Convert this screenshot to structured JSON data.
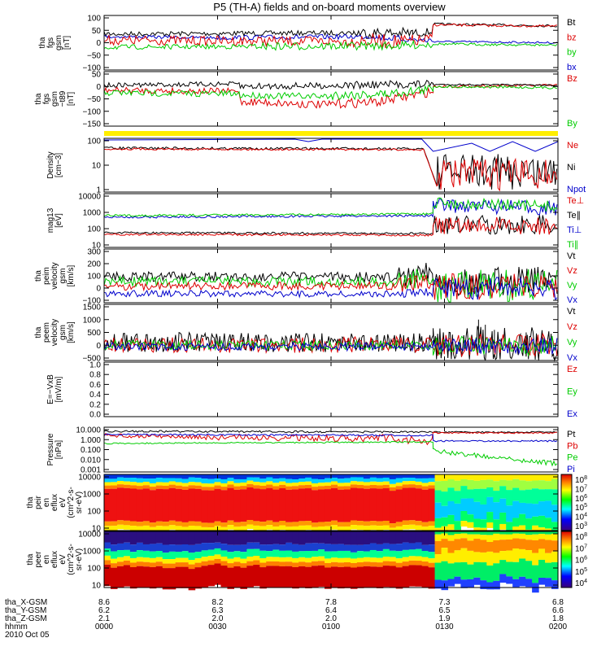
{
  "title": "P5 (TH-A) fields and on-board moments overview",
  "panels": [
    {
      "id": "fgs",
      "ylabel": [
        "tha",
        "fgs",
        "gsm",
        "[nT]"
      ],
      "ticks": [
        "100",
        "50",
        "0",
        "−50",
        "−100"
      ],
      "legend": [
        {
          "text": "Bt",
          "color": "#000000"
        },
        {
          "text": "bz",
          "color": "#dd0000"
        },
        {
          "text": "by",
          "color": "#00cc00"
        },
        {
          "text": "bx",
          "color": "#0000cc"
        }
      ]
    },
    {
      "id": "fgs_t89",
      "ylabel": [
        "tha",
        "fgs",
        "gsm",
        "−t89",
        "[nT]"
      ],
      "ticks": [
        "50",
        "0",
        "−50",
        "−100",
        "−150"
      ],
      "legend": [
        {
          "text": "Bz",
          "color": "#dd0000"
        },
        {
          "text": "By",
          "color": "#00cc00"
        }
      ]
    },
    {
      "id": "density",
      "ylabel": [
        "Density",
        "[cm−3]"
      ],
      "ticks": [
        "100",
        "10",
        "1"
      ],
      "legend": [
        {
          "text": "Ne",
          "color": "#dd0000"
        },
        {
          "text": "Ni",
          "color": "#000000"
        },
        {
          "text": "Npot",
          "color": "#0000cc"
        }
      ]
    },
    {
      "id": "temp",
      "ylabel": [
        "mag13",
        "[eV]"
      ],
      "ticks": [
        "10000",
        "1000",
        "100",
        "10"
      ],
      "legend": [
        {
          "text": "Te⊥",
          "color": "#dd0000"
        },
        {
          "text": "Te∥",
          "color": "#000000"
        },
        {
          "text": "Ti⊥",
          "color": "#0000cc"
        },
        {
          "text": "Ti∥",
          "color": "#00cc00"
        }
      ]
    },
    {
      "id": "peim_v",
      "ylabel": [
        "tha",
        "peim",
        "velocity",
        "gsm",
        "[km/s]"
      ],
      "ticks": [
        "300",
        "200",
        "100",
        "0",
        "−100"
      ],
      "legend": [
        {
          "text": "Vt",
          "color": "#000000"
        },
        {
          "text": "Vz",
          "color": "#dd0000"
        },
        {
          "text": "Vy",
          "color": "#00cc00"
        },
        {
          "text": "Vx",
          "color": "#0000cc"
        }
      ]
    },
    {
      "id": "peem_v",
      "ylabel": [
        "tha",
        "peem",
        "velocity",
        "gsm",
        "[km/s]"
      ],
      "ticks": [
        "1500",
        "1000",
        "500",
        "0",
        "−500"
      ],
      "legend": [
        {
          "text": "Vt",
          "color": "#000000"
        },
        {
          "text": "Vz",
          "color": "#dd0000"
        },
        {
          "text": "Vy",
          "color": "#00cc00"
        },
        {
          "text": "Vx",
          "color": "#0000cc"
        }
      ]
    },
    {
      "id": "efield",
      "ylabel": [
        "E=−VxB",
        "[mV/m]"
      ],
      "ticks": [
        "1.0",
        "0.8",
        "0.6",
        "0.4",
        "0.2",
        "0.0"
      ],
      "legend": [
        {
          "text": "Ez",
          "color": "#dd0000"
        },
        {
          "text": "Ey",
          "color": "#00cc00"
        },
        {
          "text": "Ex",
          "color": "#0000cc"
        }
      ]
    },
    {
      "id": "pressure",
      "ylabel": [
        "Pressure",
        "[nPa]"
      ],
      "ticks": [
        "10.000",
        "1.000",
        "0.100",
        "0.010",
        "0.001"
      ],
      "legend": [
        {
          "text": "Pt",
          "color": "#000000"
        },
        {
          "text": "Pb",
          "color": "#dd0000"
        },
        {
          "text": "Pe",
          "color": "#00cc00"
        },
        {
          "text": "Pi",
          "color": "#0000cc"
        }
      ]
    },
    {
      "id": "peir_spec",
      "ylabel": [
        "tha",
        "peir",
        "en",
        "eflux",
        "eV",
        "(cm^2-s-",
        "sr-eV)"
      ],
      "ticks": [
        "10000",
        "1000",
        "100",
        "10"
      ],
      "colorbar": [
        "10^8",
        "10^7",
        "10^6",
        "10^5",
        "10^4",
        "10^3"
      ]
    },
    {
      "id": "peer_spec",
      "ylabel": [
        "tha",
        "peer",
        "en",
        "eflux",
        "eV",
        "(cm^2-s-",
        "sr-eV)"
      ],
      "ticks": [
        "10000",
        "1000",
        "100",
        "10"
      ],
      "colorbar": [
        "10^8",
        "10^7",
        "10^6",
        "10^5",
        "10^4"
      ]
    }
  ],
  "xaxis": {
    "row_labels": [
      "tha_X-GSM",
      "tha_Y-GSM",
      "tha_Z-GSM",
      "hhmm",
      "2010 Oct 05"
    ],
    "columns": [
      {
        "x": "8.6",
        "y": "6.2",
        "z": "2.1",
        "t": "0000"
      },
      {
        "x": "8.2",
        "y": "6.3",
        "z": "2.0",
        "t": "0030"
      },
      {
        "x": "7.8",
        "y": "6.4",
        "z": "2.0",
        "t": "0100"
      },
      {
        "x": "7.3",
        "y": "6.5",
        "z": "1.9",
        "t": "0130"
      },
      {
        "x": "6.8",
        "y": "6.6",
        "z": "1.8",
        "t": "0200"
      }
    ]
  },
  "chart_data": {
    "type": "line",
    "title": "P5 (TH-A) fields and on-board moments overview",
    "date": "2010 Oct 05",
    "x_range": [
      "00:00",
      "02:00"
    ],
    "x_ticks": [
      "0000",
      "0030",
      "0100",
      "0130",
      "0200"
    ],
    "boundary_time": "01:27",
    "stacked_panels": [
      {
        "name": "tha fgs gsm",
        "unit": "nT",
        "ylim": [
          -100,
          100
        ],
        "series": [
          {
            "name": "Bt",
            "before": 35,
            "after": 65
          },
          {
            "name": "bz",
            "before": 10,
            "after": 62
          },
          {
            "name": "by",
            "before": -15,
            "after": -8
          },
          {
            "name": "bx",
            "before": 20,
            "after": 0
          }
        ]
      },
      {
        "name": "tha fgs gsm −t89",
        "unit": "nT",
        "ylim": [
          -175,
          50
        ],
        "series": [
          {
            "name": "Bz",
            "before": -55,
            "after": 5
          },
          {
            "name": "By",
            "before": -35,
            "after": 0
          }
        ]
      },
      {
        "name": "Density",
        "unit": "cm−3",
        "scale": "log",
        "ylim": [
          1,
          200
        ],
        "series": [
          {
            "name": "Ne",
            "before": 75,
            "after": 1.5
          },
          {
            "name": "Ni",
            "before": 80,
            "after": 2
          },
          {
            "name": "Npot",
            "before": 120,
            "after": 80
          }
        ]
      },
      {
        "name": "mag13",
        "unit": "eV",
        "scale": "log",
        "ylim": [
          5,
          10000
        ],
        "series": [
          {
            "name": "Te⊥",
            "before": 20,
            "after": 60
          },
          {
            "name": "Te∥",
            "before": 20,
            "after": 80
          },
          {
            "name": "Ti⊥",
            "before": 200,
            "after": 2500
          },
          {
            "name": "Ti∥",
            "before": 220,
            "after": 3000
          }
        ]
      },
      {
        "name": "tha peim velocity gsm",
        "unit": "km/s",
        "ylim": [
          -100,
          300
        ],
        "series": [
          {
            "name": "Vt",
            "before": 80,
            "after": 40
          },
          {
            "name": "Vz",
            "before": 20,
            "after": 5
          },
          {
            "name": "Vy",
            "before": 40,
            "after": -20
          },
          {
            "name": "Vx",
            "before": -60,
            "after": -10
          }
        ]
      },
      {
        "name": "tha peem velocity gsm",
        "unit": "km/s",
        "ylim": [
          -500,
          1500
        ],
        "series": [
          {
            "name": "Vt",
            "before": 100,
            "after": 80
          },
          {
            "name": "Vz",
            "before": 0,
            "after": 0
          },
          {
            "name": "Vy",
            "before": 0,
            "after": 0
          },
          {
            "name": "Vx",
            "before": -50,
            "after": -20
          }
        ]
      },
      {
        "name": "E=−VxB",
        "unit": "mV/m",
        "ylim": [
          0,
          1
        ],
        "series": []
      },
      {
        "name": "Pressure",
        "unit": "nPa",
        "scale": "log",
        "ylim": [
          0.001,
          10
        ],
        "series": [
          {
            "name": "Pt",
            "before": 1.3,
            "after": 1.1
          },
          {
            "name": "Pb",
            "before": 0.6,
            "after": 1.0
          },
          {
            "name": "Pe",
            "before": 0.25,
            "after": 0.01
          },
          {
            "name": "Pi",
            "before": 0.9,
            "after": 0.3
          }
        ]
      }
    ],
    "spectrograms": [
      {
        "name": "tha peir en eflux",
        "unit": "eV/(cm^2-s-sr-eV)",
        "ylim_eV": [
          5,
          20000
        ],
        "color_range": [
          "10^3",
          "10^8"
        ]
      },
      {
        "name": "tha peer en eflux",
        "unit": "eV/(cm^2-s-sr-eV)",
        "ylim_eV": [
          5,
          20000
        ],
        "color_range": [
          "10^4",
          "10^8"
        ]
      }
    ],
    "ephemeris": {
      "X_GSM": [
        8.6,
        8.2,
        7.8,
        7.3,
        6.8
      ],
      "Y_GSM": [
        6.2,
        6.3,
        6.4,
        6.5,
        6.6
      ],
      "Z_GSM": [
        2.1,
        2.0,
        2.0,
        1.9,
        1.8
      ]
    }
  }
}
